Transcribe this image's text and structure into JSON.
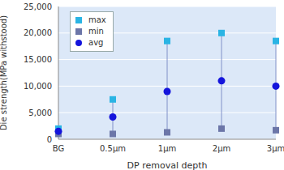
{
  "chart_data": {
    "type": "scatter",
    "x_label": "DP removal depth",
    "y_label": "Die strength(MPa withstood)",
    "categories": [
      "BG",
      "0.5μm",
      "1μm",
      "2μm",
      "3μm"
    ],
    "series": [
      {
        "name": "max",
        "color": "#2ab4e4",
        "marker": "square",
        "values": [
          2000,
          7500,
          18500,
          20000,
          18500
        ]
      },
      {
        "name": "min",
        "color": "#6c76a8",
        "marker": "square",
        "values": [
          1000,
          1000,
          1300,
          2000,
          1700
        ]
      },
      {
        "name": "avg",
        "color": "#1414dc",
        "marker": "circle",
        "values": [
          1500,
          4200,
          9000,
          11000,
          10000
        ]
      }
    ],
    "ylim": [
      0,
      25000
    ],
    "yticks": [
      0,
      {
        "value": 5000,
        "label": "5,000"
      },
      {
        "value": 10000,
        "label": "10,000"
      },
      {
        "value": 15000,
        "label": "15,000"
      },
      {
        "value": 20000,
        "label": "20,000"
      },
      {
        "value": 25000,
        "label": "25,000"
      }
    ],
    "grid": true,
    "legend": "upper left"
  }
}
